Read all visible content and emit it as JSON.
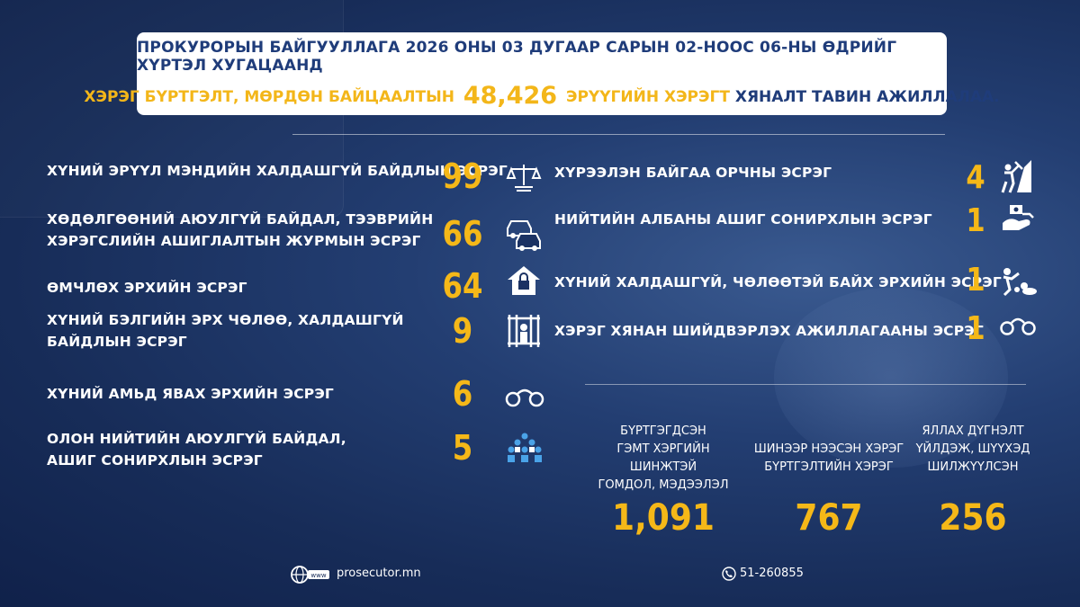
{
  "header": {
    "line1": "ПРОКУРОРЫН БАЙГУУЛЛАГА 2026 ОНЫ 03 ДУГААР САРЫН 02-НООС 06-НЫ ӨДРИЙГ ХҮРТЭЛ ХУГАЦААНД",
    "line2_part1": "ХЭРЭГ БҮРТГЭЛТ, МӨРДӨН БАЙЦААЛТЫН",
    "line2_number": "48,426",
    "line2_part2": "ЭРҮҮГИЙН ХЭРЭГТ",
    "line2_part3": "ХЯНАЛТ ТАВИН АЖИЛЛАЛАА."
  },
  "left_items": [
    {
      "label_lines": [
        "ХҮНИЙ ЭРҮҮЛ МЭНДИЙН ХАЛДАШГҮЙ БАЙДЛЫН ЭСРЭГ"
      ],
      "value": "99",
      "icon": "scales-icon"
    },
    {
      "label_lines": [
        "ХӨДӨЛГӨӨНИЙ АЮУЛГҮЙ БАЙДАЛ, ТЭЭВРИЙН",
        "ХЭРЭГСЛИЙН АШИГЛАЛТЫН ЖУРМЫН ЭСРЭГ"
      ],
      "value": "66",
      "icon": "cars-icon"
    },
    {
      "label_lines": [
        "ӨМЧЛӨХ ЭРХИЙН ЭСРЭГ"
      ],
      "value": "64",
      "icon": "house-lock-icon"
    },
    {
      "label_lines": [
        "ХҮНИЙ БЭЛГИЙН ЭРХ ЧӨЛӨӨ, ХАЛДАШГҮЙ",
        "БАЙДЛЫН ЭСРЭГ"
      ],
      "value": "9",
      "icon": "prison-icon"
    },
    {
      "label_lines": [
        "ХҮНИЙ АМЬД ЯВАХ ЭРХИЙН ЭСРЭГ"
      ],
      "value": "6",
      "icon": "handcuffs-icon"
    },
    {
      "label_lines": [
        "ОЛОН НИЙТИЙН АЮУЛГҮЙ БАЙДАЛ,",
        "АШИГ СОНИРХЛЫН ЭСРЭГ"
      ],
      "value": "5",
      "icon": "crowd-icon"
    }
  ],
  "right_items": [
    {
      "label": "ХҮРЭЭЛЭН БАЙГАА ОРЧНЫ ЭСРЭГ",
      "value": "4",
      "icon": "mountain-pickaxe-icon"
    },
    {
      "label": "НИЙТИЙН АЛБАНЫ АШИГ СОНИРХЛЫН ЭСРЭГ",
      "value": "1",
      "icon": "bribery-icon"
    },
    {
      "label": "ХҮНИЙ ХАЛДАШГҮЙ, ЧӨЛӨӨТЭЙ БАЙХ ЭРХИЙН ЭСРЭГ",
      "value": "1",
      "icon": "assault-icon"
    },
    {
      "label": "ХЭРЭГ ХЯНАН ШИЙДВЭРЛЭХ АЖИЛЛАГААНЫ ЭСРЭГ",
      "value": "1",
      "icon": "handcuffs-icon"
    }
  ],
  "stats": [
    {
      "label_lines": [
        "БҮРТГЭГДСЭН",
        "ГЭМТ ХЭРГИЙН ШИНЖТЭЙ",
        "ГОМДОЛ, МЭДЭЭЛЭЛ"
      ],
      "value": "1,091"
    },
    {
      "label_lines": [
        "ШИНЭЭР НЭЭСЭН ХЭРЭГ",
        "БҮРТГЭЛТИЙН ХЭРЭГ"
      ],
      "value": "767"
    },
    {
      "label_lines": [
        "ЯЛЛАХ ДҮГНЭЛТ",
        "ҮЙЛДЭЖ, ШҮҮХЭД",
        "ШИЛЖҮҮЛСЭН"
      ],
      "value": "256"
    }
  ],
  "footer": {
    "website": "prosecutor.mn",
    "phone": "51-260855",
    "www_label": "www"
  },
  "colors": {
    "accent": "#f5b818",
    "header_text": "#1f3c7a",
    "background": "#172c58"
  }
}
